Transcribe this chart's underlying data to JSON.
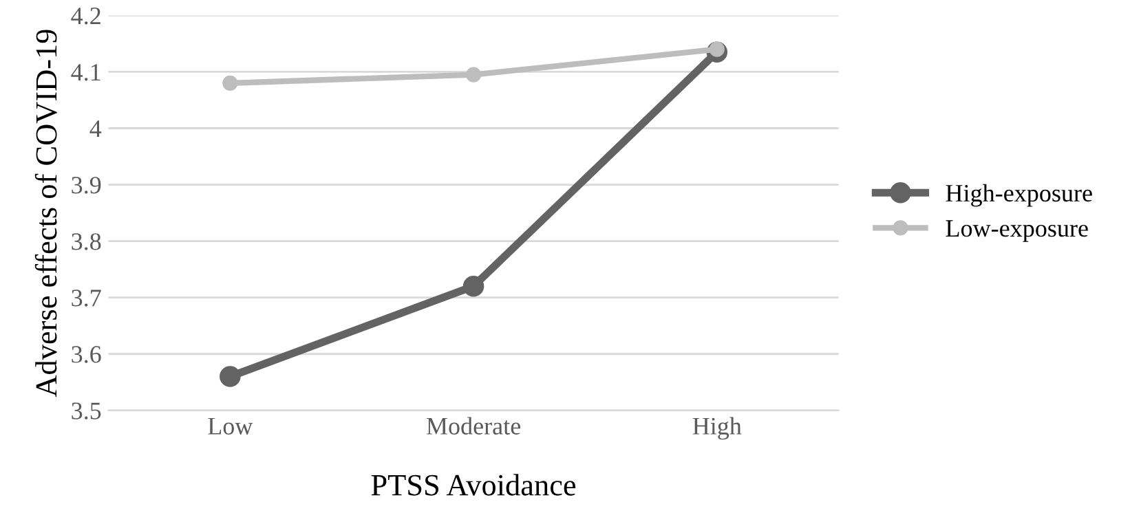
{
  "chart_data": {
    "type": "line",
    "xlabel": "PTSS Avoidance",
    "ylabel": "Adverse effects of COVID-19",
    "categories": [
      "Low",
      "Moderate",
      "High"
    ],
    "series": [
      {
        "name": "High-exposure",
        "color": "#636363",
        "values": [
          3.56,
          3.72,
          4.135
        ]
      },
      {
        "name": "Low-exposure",
        "color": "#bdbdbd",
        "values": [
          4.08,
          4.095,
          4.14
        ]
      }
    ],
    "ylim": [
      3.5,
      4.2
    ],
    "yticks": [
      3.5,
      3.6,
      3.7,
      3.8,
      3.9,
      {
        "value": 4.0,
        "label": "4"
      },
      4.1,
      4.2
    ],
    "grid": "y",
    "legend": "right",
    "marker": "circle",
    "line_style": "solid"
  }
}
